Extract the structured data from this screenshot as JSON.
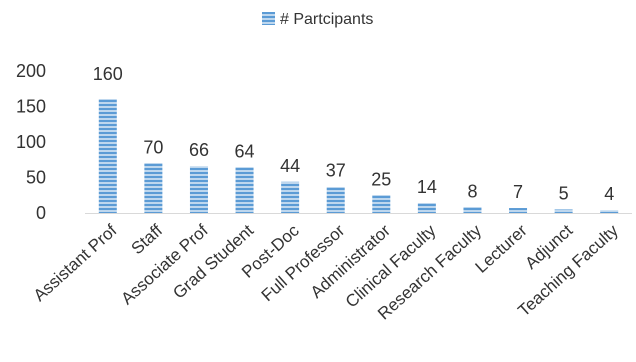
{
  "chart_data": {
    "type": "bar",
    "categories": [
      "Assistant Prof",
      "Staff",
      "Associate Prof",
      "Grad Student",
      "Post-Doc",
      "Full Professor",
      "Administrator",
      "Clinical Faculty",
      "Research Faculty",
      "Lecturer",
      "Adjunct",
      "Teaching Faculty"
    ],
    "series": [
      {
        "name": "# Partcipants",
        "values": [
          160,
          70,
          66,
          64,
          44,
          37,
          25,
          14,
          8,
          7,
          5,
          4
        ]
      }
    ],
    "ylim": [
      0,
      200
    ],
    "yticks": [
      0,
      50,
      100,
      150,
      200
    ],
    "legend_position": "top-center",
    "grid": false,
    "data_labels": true,
    "colors": {
      "bar": "#5B9BD5",
      "bar_stripe": "#ffffff",
      "axis": "#d9d9d9",
      "text": "#333333"
    }
  }
}
